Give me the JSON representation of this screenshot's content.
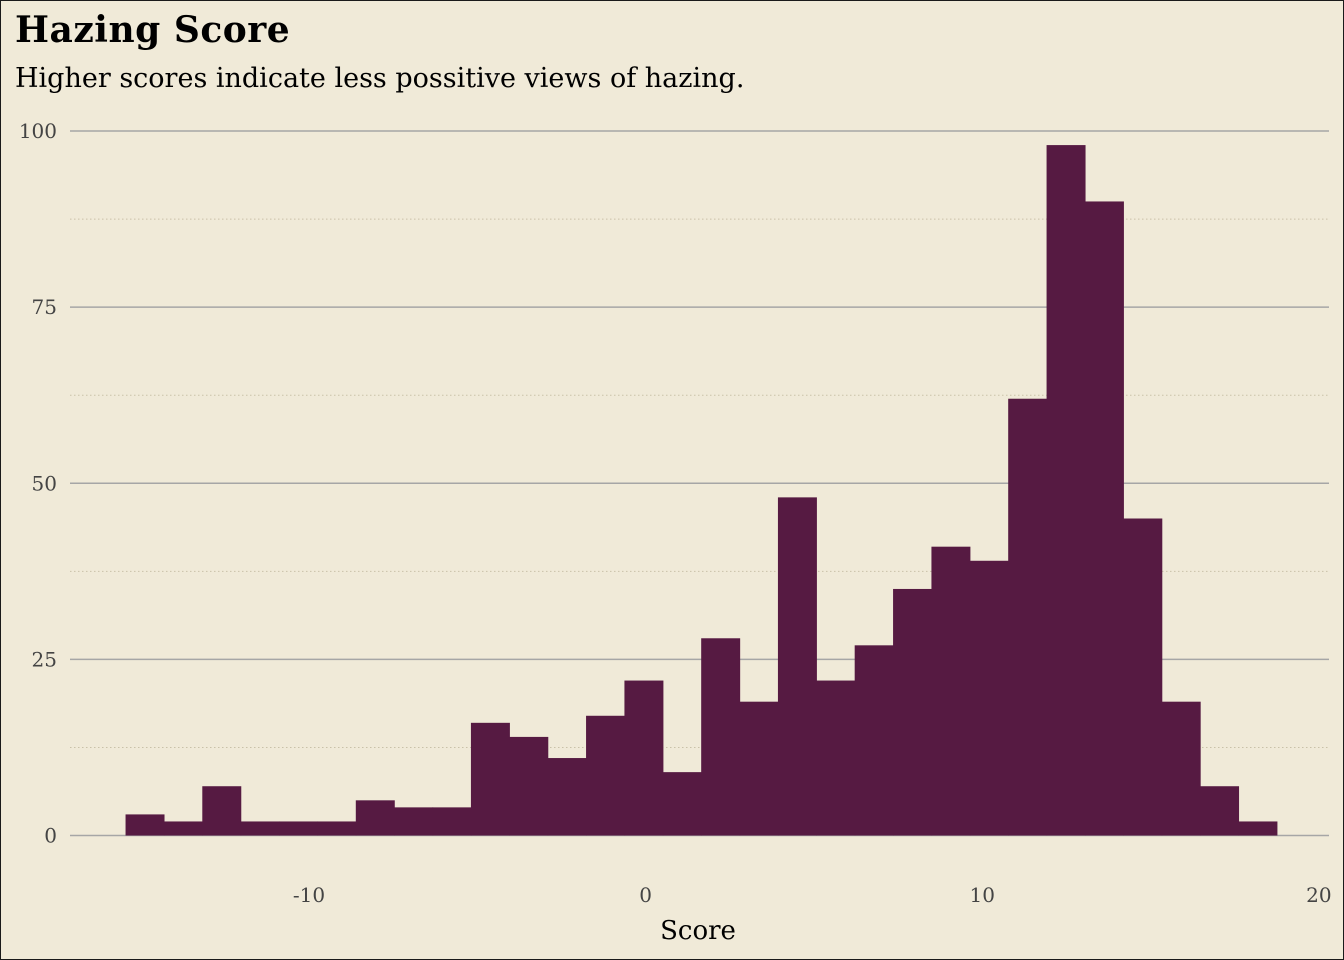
{
  "chart_data": {
    "type": "bar",
    "histogram": true,
    "title": "Hazing Score",
    "subtitle": "Higher scores indicate less possitive views of hazing.",
    "xlabel": "Score",
    "ylabel": "",
    "xlim": [
      -17.1,
      20.3
    ],
    "ylim": [
      -1.2,
      100
    ],
    "xticks": [
      -10,
      0,
      10,
      20
    ],
    "yticks": [
      0,
      25,
      50,
      75,
      100
    ],
    "grid": true,
    "bar_color": "#561a42",
    "background": "#f0ead8",
    "grid_color": "#a6a6a6",
    "bin_width": 1.14,
    "bin_start": -15.45,
    "values": [
      3,
      2,
      7,
      2,
      2,
      2,
      5,
      4,
      4,
      16,
      14,
      11,
      17,
      22,
      9,
      28,
      19,
      48,
      22,
      27,
      35,
      41,
      39,
      62,
      98,
      90,
      45,
      19,
      7,
      2
    ]
  }
}
